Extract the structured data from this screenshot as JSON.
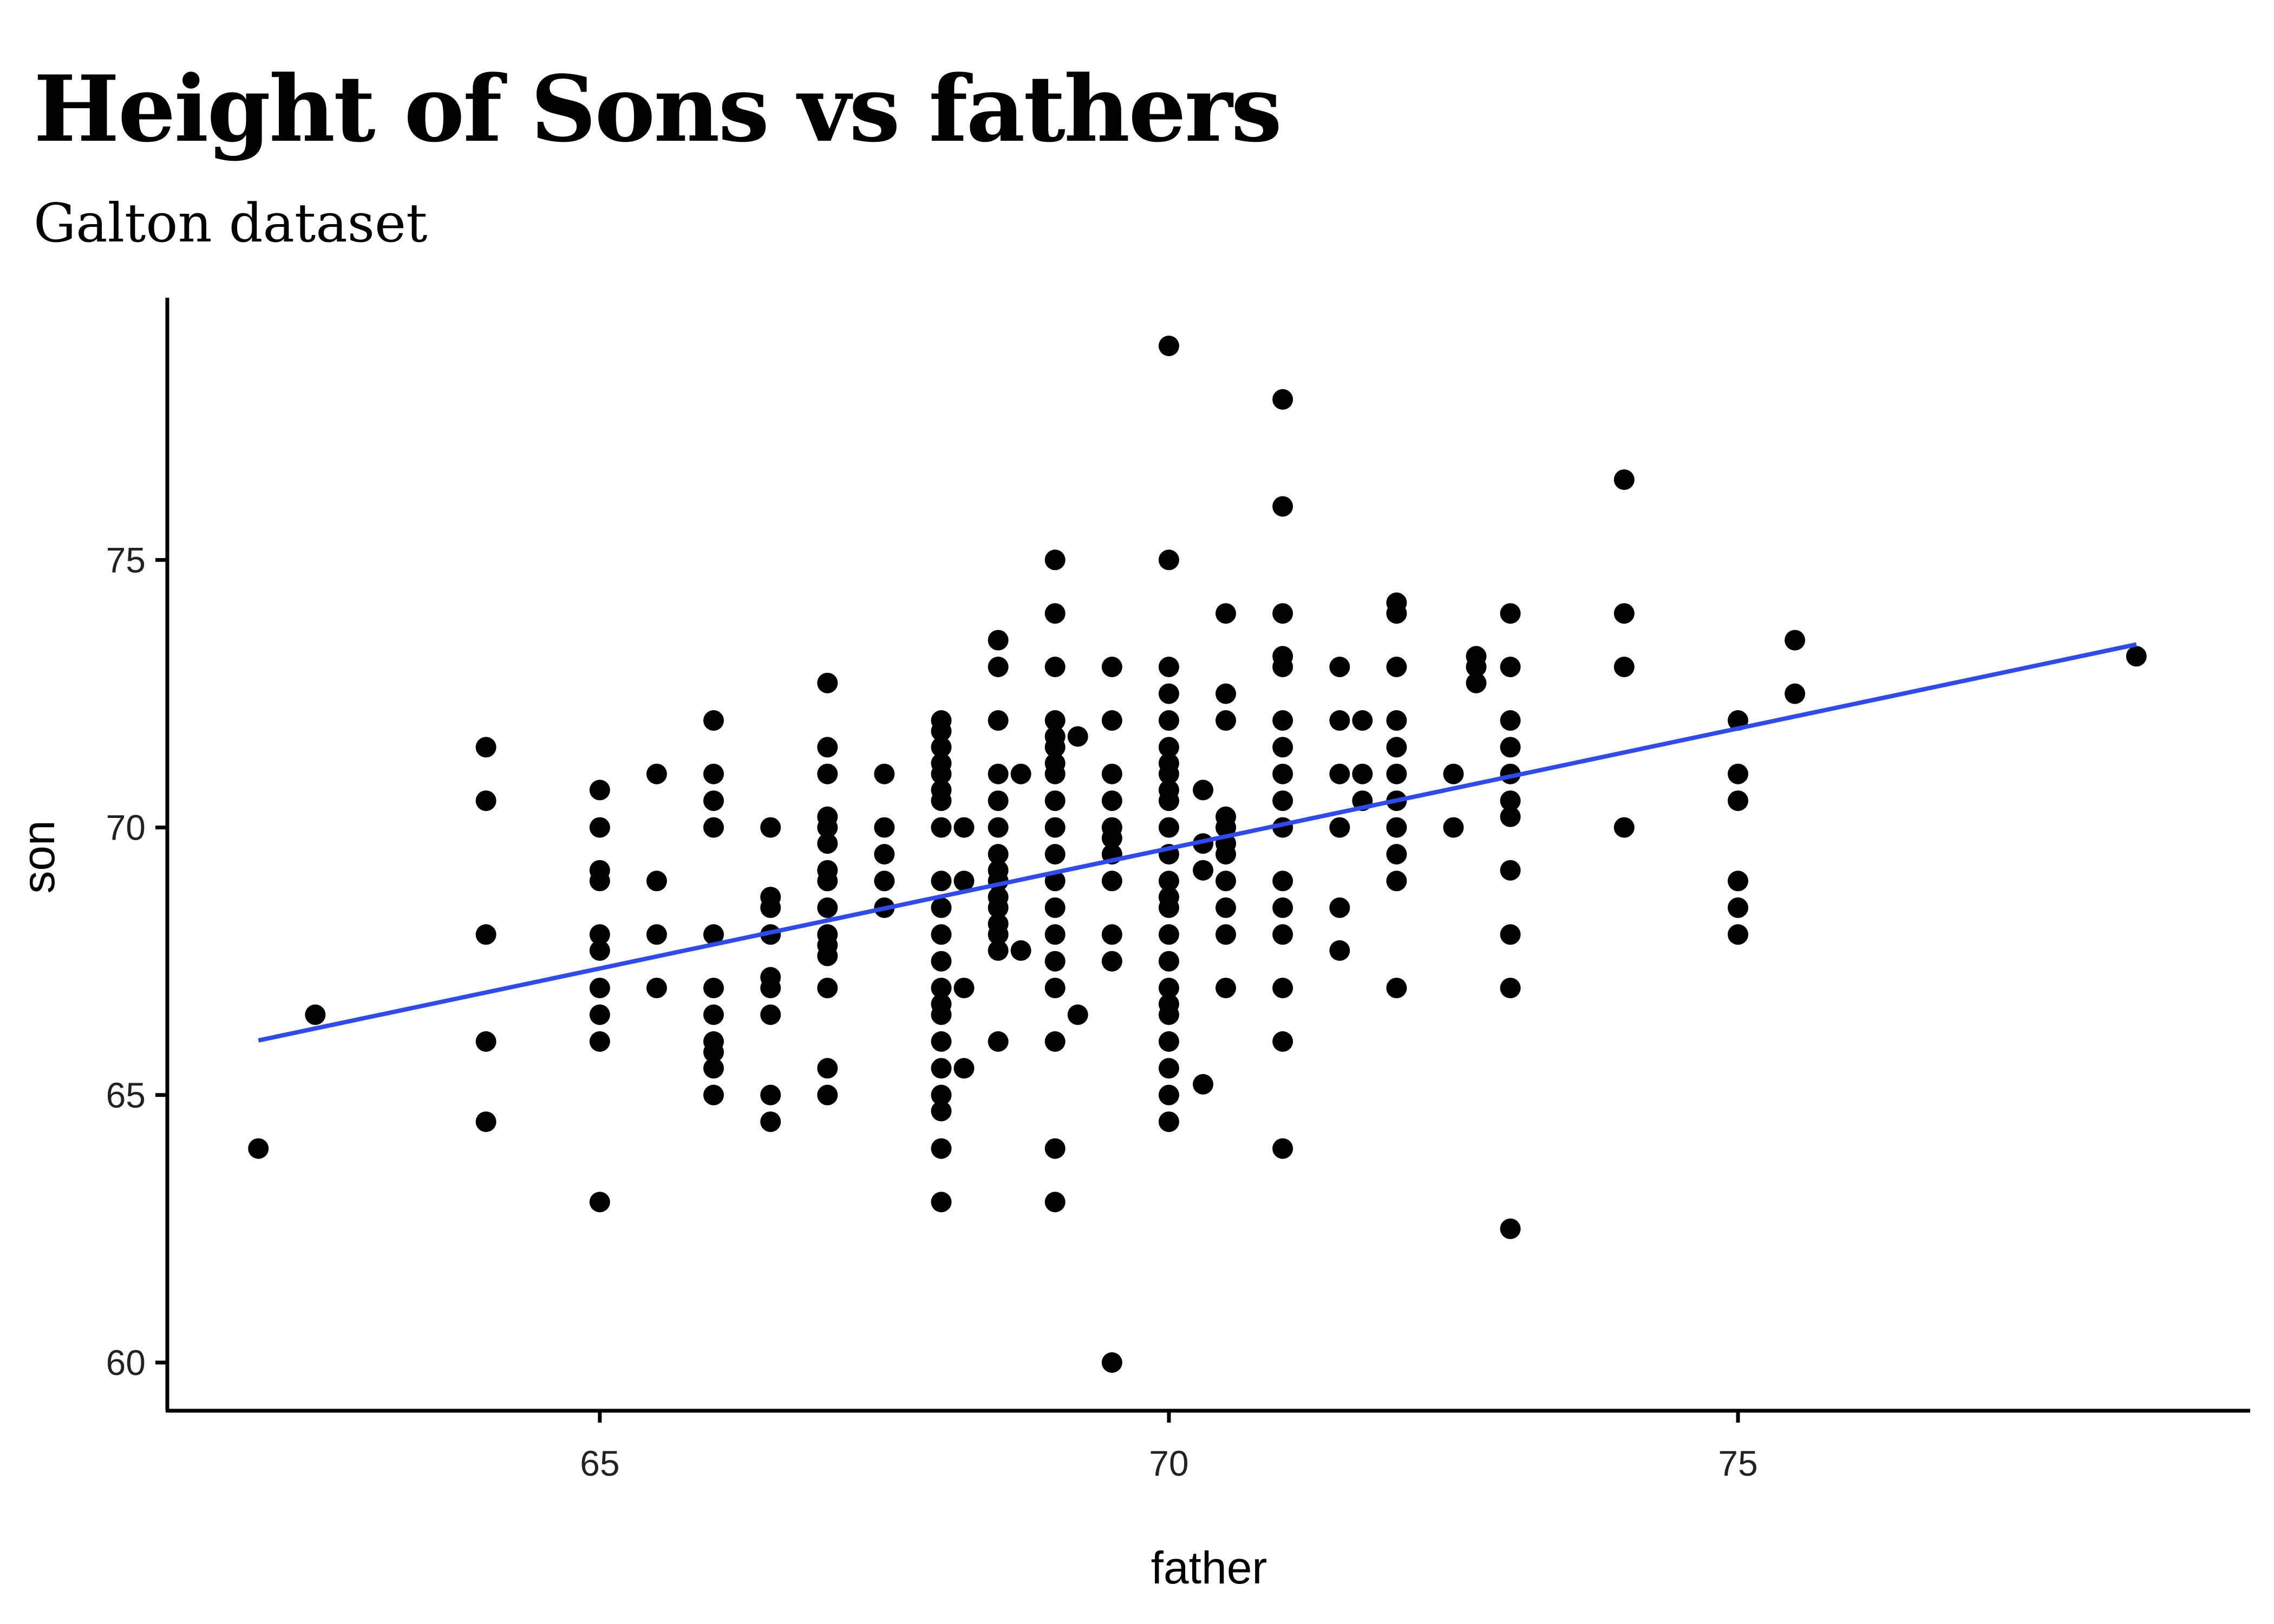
{
  "chart_data": {
    "type": "scatter",
    "title": "Height of Sons vs fathers",
    "subtitle": "Galton dataset",
    "xlabel": "father",
    "ylabel": "son",
    "xlim": [
      61.2,
      79.5
    ],
    "ylim": [
      59.1,
      79.9
    ],
    "x_ticks": [
      65,
      70,
      75
    ],
    "y_ticks": [
      60,
      65,
      70,
      75
    ],
    "x_tick_labels": [
      "65",
      "70",
      "75"
    ],
    "y_tick_labels": [
      "60",
      "65",
      "70",
      "75"
    ],
    "grid": false,
    "legend": "none",
    "point_color": "#000000",
    "fit_line_color": "#2f4af0",
    "fit_line": {
      "type": "linear",
      "x": [
        62.0,
        78.5
      ],
      "y": [
        66.02,
        73.42
      ]
    },
    "points": [
      [
        62.0,
        64.0
      ],
      [
        62.5,
        66.5
      ],
      [
        64.0,
        71.5
      ],
      [
        64.0,
        70.5
      ],
      [
        64.0,
        68.0
      ],
      [
        64.0,
        66.0
      ],
      [
        64.0,
        64.5
      ],
      [
        65.0,
        70.7
      ],
      [
        65.0,
        70.0
      ],
      [
        65.0,
        69.2
      ],
      [
        65.0,
        69.0
      ],
      [
        65.0,
        68.0
      ],
      [
        65.0,
        67.7
      ],
      [
        65.0,
        67.0
      ],
      [
        65.0,
        66.5
      ],
      [
        65.0,
        66.0
      ],
      [
        65.0,
        63.0
      ],
      [
        65.5,
        71.0
      ],
      [
        65.5,
        69.0
      ],
      [
        65.5,
        68.0
      ],
      [
        65.5,
        67.0
      ],
      [
        66.0,
        72.0
      ],
      [
        66.0,
        71.0
      ],
      [
        66.0,
        70.5
      ],
      [
        66.0,
        70.0
      ],
      [
        66.0,
        68.0
      ],
      [
        66.0,
        67.0
      ],
      [
        66.0,
        66.5
      ],
      [
        66.0,
        66.0
      ],
      [
        66.0,
        65.8
      ],
      [
        66.0,
        65.5
      ],
      [
        66.0,
        65.0
      ],
      [
        66.5,
        70.0
      ],
      [
        66.5,
        68.7
      ],
      [
        66.5,
        68.5
      ],
      [
        66.5,
        68.0
      ],
      [
        66.5,
        67.2
      ],
      [
        66.5,
        67.0
      ],
      [
        66.5,
        66.5
      ],
      [
        66.5,
        65.0
      ],
      [
        66.5,
        64.5
      ],
      [
        67.0,
        72.7
      ],
      [
        67.0,
        71.5
      ],
      [
        67.0,
        71.0
      ],
      [
        67.0,
        70.2
      ],
      [
        67.0,
        70.0
      ],
      [
        67.0,
        69.7
      ],
      [
        67.0,
        69.2
      ],
      [
        67.0,
        69.0
      ],
      [
        67.0,
        68.5
      ],
      [
        67.0,
        68.0
      ],
      [
        67.0,
        67.8
      ],
      [
        67.0,
        67.6
      ],
      [
        67.0,
        67.0
      ],
      [
        67.0,
        65.5
      ],
      [
        67.0,
        65.0
      ],
      [
        67.5,
        71.0
      ],
      [
        67.5,
        70.0
      ],
      [
        67.5,
        69.5
      ],
      [
        67.5,
        69.0
      ],
      [
        67.5,
        68.5
      ],
      [
        68.0,
        72.0
      ],
      [
        68.0,
        71.8
      ],
      [
        68.0,
        71.5
      ],
      [
        68.0,
        71.2
      ],
      [
        68.0,
        71.0
      ],
      [
        68.0,
        70.7
      ],
      [
        68.0,
        70.5
      ],
      [
        68.0,
        70.0
      ],
      [
        68.0,
        69.0
      ],
      [
        68.0,
        68.5
      ],
      [
        68.0,
        68.0
      ],
      [
        68.0,
        67.5
      ],
      [
        68.0,
        67.0
      ],
      [
        68.0,
        66.7
      ],
      [
        68.0,
        66.5
      ],
      [
        68.0,
        66.0
      ],
      [
        68.0,
        65.5
      ],
      [
        68.0,
        65.0
      ],
      [
        68.0,
        64.7
      ],
      [
        68.0,
        64.0
      ],
      [
        68.0,
        63.0
      ],
      [
        68.2,
        70.0
      ],
      [
        68.2,
        69.0
      ],
      [
        68.2,
        67.0
      ],
      [
        68.2,
        65.5
      ],
      [
        68.5,
        73.5
      ],
      [
        68.5,
        73.0
      ],
      [
        68.5,
        72.0
      ],
      [
        68.5,
        71.0
      ],
      [
        68.5,
        70.5
      ],
      [
        68.5,
        70.0
      ],
      [
        68.5,
        69.5
      ],
      [
        68.5,
        69.2
      ],
      [
        68.5,
        69.0
      ],
      [
        68.5,
        68.7
      ],
      [
        68.5,
        68.5
      ],
      [
        68.5,
        68.2
      ],
      [
        68.5,
        68.0
      ],
      [
        68.5,
        67.7
      ],
      [
        68.5,
        66.0
      ],
      [
        68.7,
        71.0
      ],
      [
        68.7,
        67.7
      ],
      [
        69.0,
        75.0
      ],
      [
        69.0,
        74.0
      ],
      [
        69.0,
        73.0
      ],
      [
        69.0,
        72.0
      ],
      [
        69.0,
        71.7
      ],
      [
        69.0,
        71.5
      ],
      [
        69.0,
        71.2
      ],
      [
        69.0,
        71.0
      ],
      [
        69.0,
        70.5
      ],
      [
        69.0,
        70.0
      ],
      [
        69.0,
        69.5
      ],
      [
        69.0,
        69.0
      ],
      [
        69.0,
        68.5
      ],
      [
        69.0,
        68.0
      ],
      [
        69.0,
        67.5
      ],
      [
        69.0,
        67.0
      ],
      [
        69.0,
        66.0
      ],
      [
        69.0,
        64.0
      ],
      [
        69.0,
        63.0
      ],
      [
        69.2,
        71.7
      ],
      [
        69.2,
        66.5
      ],
      [
        69.5,
        73.0
      ],
      [
        69.5,
        72.0
      ],
      [
        69.5,
        71.0
      ],
      [
        69.5,
        70.5
      ],
      [
        69.5,
        70.0
      ],
      [
        69.5,
        69.8
      ],
      [
        69.5,
        69.5
      ],
      [
        69.5,
        69.0
      ],
      [
        69.5,
        68.0
      ],
      [
        69.5,
        67.5
      ],
      [
        69.5,
        60.0
      ],
      [
        70.0,
        79.0
      ],
      [
        70.0,
        75.0
      ],
      [
        70.0,
        73.0
      ],
      [
        70.0,
        72.5
      ],
      [
        70.0,
        72.0
      ],
      [
        70.0,
        71.5
      ],
      [
        70.0,
        71.2
      ],
      [
        70.0,
        71.0
      ],
      [
        70.0,
        70.7
      ],
      [
        70.0,
        70.5
      ],
      [
        70.0,
        70.0
      ],
      [
        70.0,
        69.5
      ],
      [
        70.0,
        69.0
      ],
      [
        70.0,
        68.7
      ],
      [
        70.0,
        68.5
      ],
      [
        70.0,
        68.0
      ],
      [
        70.0,
        67.5
      ],
      [
        70.0,
        67.0
      ],
      [
        70.0,
        66.7
      ],
      [
        70.0,
        66.5
      ],
      [
        70.0,
        66.0
      ],
      [
        70.0,
        65.5
      ],
      [
        70.0,
        65.0
      ],
      [
        70.0,
        64.5
      ],
      [
        70.3,
        70.7
      ],
      [
        70.3,
        69.7
      ],
      [
        70.3,
        69.2
      ],
      [
        70.3,
        65.2
      ],
      [
        70.5,
        74.0
      ],
      [
        70.5,
        72.5
      ],
      [
        70.5,
        72.0
      ],
      [
        70.5,
        70.2
      ],
      [
        70.5,
        70.0
      ],
      [
        70.5,
        69.7
      ],
      [
        70.5,
        69.5
      ],
      [
        70.5,
        69.0
      ],
      [
        70.5,
        68.5
      ],
      [
        70.5,
        68.0
      ],
      [
        70.5,
        67.0
      ],
      [
        71.0,
        78.0
      ],
      [
        71.0,
        76.0
      ],
      [
        71.0,
        74.0
      ],
      [
        71.0,
        73.2
      ],
      [
        71.0,
        73.0
      ],
      [
        71.0,
        72.0
      ],
      [
        71.0,
        71.5
      ],
      [
        71.0,
        71.0
      ],
      [
        71.0,
        70.5
      ],
      [
        71.0,
        70.0
      ],
      [
        71.0,
        69.0
      ],
      [
        71.0,
        68.5
      ],
      [
        71.0,
        68.0
      ],
      [
        71.0,
        67.0
      ],
      [
        71.0,
        66.0
      ],
      [
        71.0,
        64.0
      ],
      [
        71.5,
        73.0
      ],
      [
        71.5,
        72.0
      ],
      [
        71.5,
        71.0
      ],
      [
        71.5,
        70.0
      ],
      [
        71.5,
        68.5
      ],
      [
        71.5,
        67.7
      ],
      [
        71.7,
        72.0
      ],
      [
        71.7,
        71.0
      ],
      [
        71.7,
        70.5
      ],
      [
        72.0,
        74.2
      ],
      [
        72.0,
        74.0
      ],
      [
        72.0,
        73.0
      ],
      [
        72.0,
        72.0
      ],
      [
        72.0,
        71.5
      ],
      [
        72.0,
        71.0
      ],
      [
        72.0,
        70.5
      ],
      [
        72.0,
        70.0
      ],
      [
        72.0,
        69.5
      ],
      [
        72.0,
        69.0
      ],
      [
        72.0,
        67.0
      ],
      [
        72.5,
        71.0
      ],
      [
        72.5,
        70.0
      ],
      [
        72.7,
        73.2
      ],
      [
        72.7,
        73.0
      ],
      [
        72.7,
        72.7
      ],
      [
        73.0,
        74.0
      ],
      [
        73.0,
        73.0
      ],
      [
        73.0,
        72.0
      ],
      [
        73.0,
        71.5
      ],
      [
        73.0,
        71.0
      ],
      [
        73.0,
        70.5
      ],
      [
        73.0,
        70.2
      ],
      [
        73.0,
        69.2
      ],
      [
        73.0,
        68.0
      ],
      [
        73.0,
        67.0
      ],
      [
        73.0,
        62.5
      ],
      [
        74.0,
        76.5
      ],
      [
        74.0,
        74.0
      ],
      [
        74.0,
        73.0
      ],
      [
        74.0,
        70.0
      ],
      [
        75.0,
        72.0
      ],
      [
        75.0,
        71.0
      ],
      [
        75.0,
        70.5
      ],
      [
        75.0,
        69.0
      ],
      [
        75.0,
        68.5
      ],
      [
        75.0,
        68.0
      ],
      [
        75.5,
        73.5
      ],
      [
        75.5,
        72.5
      ],
      [
        78.5,
        73.2
      ]
    ]
  }
}
